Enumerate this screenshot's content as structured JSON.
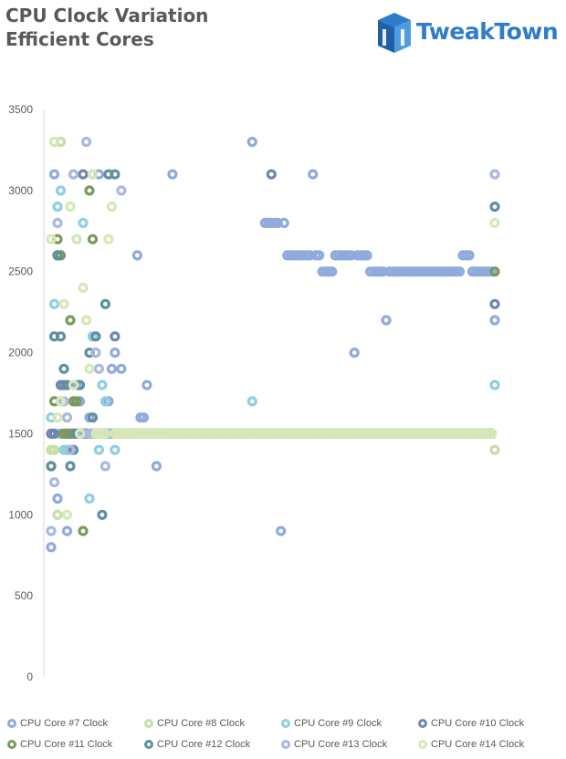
{
  "title_lines": [
    "CPU Clock Variation",
    "Efficient Cores"
  ],
  "logo": {
    "text": "TweakTown",
    "icon": "tweaktown-logo-icon",
    "color": "#2f7dc9"
  },
  "chart_data": {
    "type": "scatter",
    "title": "CPU Clock Variation Efficient Cores",
    "xlabel": "",
    "ylabel": "",
    "ylim": [
      0,
      3500
    ],
    "yticks": [
      0,
      500,
      1000,
      1500,
      2000,
      2500,
      3000,
      3500
    ],
    "grid": false,
    "legend_position": "bottom",
    "sample_count": 140,
    "series": [
      {
        "name": "CPU Core #7 Clock",
        "color": "#8faadc",
        "values": [
          800,
          3100,
          1100,
          1500,
          1500,
          900,
          1400,
          1500,
          1800,
          1700,
          1500,
          1500,
          1600,
          3100,
          1500,
          3100,
          1500,
          1500,
          1700,
          1900,
          2000,
          1500,
          1900,
          1500,
          1500,
          1500,
          1500,
          2600,
          1600,
          1600,
          1800,
          1500,
          1500,
          1300,
          1500,
          1500,
          1500,
          1500,
          3100,
          1500,
          1500,
          1500,
          1500,
          1500,
          1500,
          1500,
          1500,
          1500,
          1500,
          1500,
          1500,
          1500,
          1500,
          1500,
          1500,
          1500,
          1500,
          1500,
          1500,
          1500,
          1500,
          1500,
          1500,
          3300,
          1500,
          1500,
          1500,
          2800,
          2800,
          2800,
          2800,
          2800,
          900,
          2800,
          2600,
          2600,
          2600,
          2600,
          2600,
          2600,
          2600,
          2600,
          3100,
          2600,
          2600,
          2500,
          2500,
          2500,
          2500,
          2600,
          2600,
          2600,
          2600,
          2600,
          2600,
          2000,
          2600,
          2600,
          2600,
          2600,
          2500,
          2500,
          2500,
          2500,
          2500,
          2200,
          2500,
          2500,
          2500,
          2500,
          2500,
          2500,
          2500,
          2500,
          2500,
          2500,
          2500,
          2500,
          2500,
          2500,
          2500,
          2500,
          2500,
          2500,
          2500,
          2500,
          2500,
          2500,
          2500,
          2600,
          2600,
          2600,
          2500,
          2500,
          2500,
          2500,
          2500,
          2500,
          2500,
          2200
        ]
      },
      {
        "name": "CPU Core #8 Clock",
        "color": "#c5dfa5",
        "values": [
          1400,
          1400,
          1000,
          3300,
          1500,
          1500,
          1500,
          1500,
          1500,
          1500,
          1500,
          1500,
          1500,
          1500,
          1500,
          1500,
          1500,
          1500,
          1500,
          1500,
          1500,
          1500,
          1500,
          1500,
          1500,
          1500,
          1500,
          1500,
          1500,
          1500,
          1500,
          1500,
          1500,
          1500,
          1500,
          1500,
          1500,
          1500,
          1500,
          1500,
          1500,
          1500,
          1500,
          1500,
          1500,
          1500,
          1500,
          1500,
          1500,
          1500,
          1500,
          1500,
          1500,
          1500,
          1500,
          1500,
          1500,
          1500,
          1500,
          1500,
          1500,
          1500,
          1500,
          1500,
          1500,
          1500,
          1500,
          1500,
          1500,
          1500,
          1500,
          1500,
          1500,
          1500,
          1500,
          1500,
          1500,
          1500,
          1500,
          1500,
          1500,
          1500,
          1500,
          1500,
          1500,
          1500,
          1500,
          1500,
          1500,
          1500,
          1500,
          1500,
          1500,
          1500,
          1500,
          1500,
          1500,
          1500,
          1500,
          1500,
          1500,
          1500,
          1500,
          1500,
          1500,
          1500,
          1500,
          1500,
          1500,
          1500,
          1500,
          1500,
          1500,
          1500,
          1500,
          1500,
          1500,
          1500,
          1500,
          1500,
          1500,
          1500,
          1500,
          1500,
          1500,
          1500,
          1500,
          1500,
          1500,
          1500,
          1500,
          1500,
          1500,
          1500,
          1500,
          1500,
          1500,
          1500,
          1500,
          1400
        ]
      },
      {
        "name": "CPU Core #9 Clock",
        "color": "#8ecfe0",
        "values": [
          1600,
          2300,
          2900,
          3000,
          1400,
          1400,
          1500,
          1500,
          1500,
          1500,
          2800,
          1500,
          1100,
          2100,
          2000,
          1400,
          1800,
          1700,
          1500,
          1500,
          1400,
          1500,
          1500,
          1500,
          1500,
          1500,
          1500,
          1500,
          1500,
          1500,
          1500,
          1500,
          1500,
          1500,
          1500,
          1500,
          1500,
          1500,
          1500,
          1500,
          1500,
          1500,
          1500,
          1500,
          1500,
          1500,
          1500,
          1500,
          1500,
          1500,
          1500,
          1500,
          1500,
          1500,
          1500,
          1500,
          1500,
          1500,
          1500,
          1500,
          1500,
          1500,
          1500,
          1700,
          1500,
          1500,
          1500,
          1500,
          1500,
          1500,
          1500,
          1500,
          1500,
          1500,
          1500,
          1500,
          1500,
          1500,
          1500,
          1500,
          1500,
          1500,
          1500,
          1500,
          1500,
          1500,
          1500,
          1500,
          1500,
          1500,
          1500,
          1500,
          1500,
          1500,
          1500,
          1500,
          1500,
          1500,
          1500,
          1500,
          1500,
          1500,
          1500,
          1500,
          1500,
          1500,
          1500,
          1500,
          1500,
          1500,
          1500,
          1500,
          1500,
          1500,
          1500,
          1500,
          1500,
          1500,
          1500,
          1500,
          1500,
          1500,
          1500,
          1500,
          1500,
          1500,
          1500,
          1500,
          1500,
          1500,
          1500,
          1500,
          1500,
          1500,
          1500,
          1500,
          1500,
          1500,
          1500,
          1800
        ]
      },
      {
        "name": "CPU Core #10 Clock",
        "color": "#6f87b0",
        "values": [
          1500,
          1500,
          2600,
          1800,
          1800,
          1500,
          1500,
          1500,
          1500,
          1500,
          3100,
          1500,
          1500,
          1500,
          1500,
          1500,
          1500,
          1500,
          1500,
          1500,
          2100,
          1500,
          1500,
          1500,
          1500,
          1500,
          1500,
          1500,
          1500,
          1500,
          1500,
          1500,
          1500,
          1500,
          1500,
          1500,
          1500,
          1500,
          1500,
          1500,
          1500,
          1500,
          1500,
          1500,
          1500,
          1500,
          1500,
          1500,
          1500,
          1500,
          1500,
          1500,
          1500,
          1500,
          1500,
          1500,
          1500,
          1500,
          1500,
          1500,
          1500,
          1500,
          1500,
          1500,
          1500,
          1500,
          1500,
          1500,
          1500,
          3100,
          1500,
          1500,
          1500,
          1500,
          1500,
          1500,
          1500,
          1500,
          1500,
          1500,
          1500,
          1500,
          1500,
          1500,
          1500,
          1500,
          1500,
          1500,
          1500,
          1500,
          1500,
          1500,
          1500,
          1500,
          1500,
          1500,
          1500,
          1500,
          1500,
          1500,
          1500,
          1500,
          1500,
          1500,
          1500,
          1500,
          1500,
          1500,
          1500,
          1500,
          1500,
          1500,
          1500,
          1500,
          1500,
          1500,
          1500,
          1500,
          1500,
          1500,
          1500,
          1500,
          1500,
          1500,
          1500,
          1500,
          1500,
          1500,
          1500,
          1500,
          1500,
          1500,
          1500,
          1500,
          1500,
          1500,
          1500,
          1500,
          1500,
          2300
        ]
      },
      {
        "name": "CPU Core #11 Clock",
        "color": "#7a9a5c",
        "values": [
          1300,
          1700,
          2700,
          2600,
          1500,
          1500,
          2200,
          1700,
          1700,
          1500,
          900,
          1500,
          3000,
          2700,
          1500,
          1500,
          1500,
          1500,
          1500,
          1500,
          1500,
          1500,
          1500,
          1500,
          1500,
          1500,
          1500,
          1500,
          1500,
          1500,
          1500,
          1500,
          1500,
          1500,
          1500,
          1500,
          1500,
          1500,
          1500,
          1500,
          1500,
          1500,
          1500,
          1500,
          1500,
          1500,
          1500,
          1500,
          1500,
          1500,
          1500,
          1500,
          1500,
          1500,
          1500,
          1500,
          1500,
          1500,
          1500,
          1500,
          1500,
          1500,
          1500,
          1500,
          1500,
          1500,
          1500,
          1500,
          1500,
          1500,
          1500,
          1500,
          1500,
          1500,
          1500,
          1500,
          1500,
          1500,
          1500,
          1500,
          1500,
          1500,
          1500,
          1500,
          1500,
          1500,
          1500,
          1500,
          1500,
          1500,
          1500,
          1500,
          1500,
          1500,
          1500,
          1500,
          1500,
          1500,
          1500,
          1500,
          1500,
          1500,
          1500,
          1500,
          1500,
          1500,
          1500,
          1500,
          1500,
          1500,
          1500,
          1500,
          1500,
          1500,
          1500,
          1500,
          1500,
          1500,
          1500,
          1500,
          1500,
          1500,
          1500,
          1500,
          1500,
          1500,
          1500,
          1500,
          1500,
          1500,
          1500,
          1500,
          1500,
          1500,
          1500,
          1500,
          1500,
          1500,
          1500,
          2500
        ]
      },
      {
        "name": "CPU Core #12 Clock",
        "color": "#5f8fa0",
        "values": [
          1300,
          2100,
          2600,
          2100,
          1900,
          1800,
          1300,
          1400,
          1500,
          1800,
          1500,
          1500,
          2000,
          1600,
          2100,
          1500,
          1000,
          2300,
          3100,
          1500,
          3100,
          1500,
          1500,
          1500,
          1500,
          1500,
          1500,
          1500,
          1500,
          1500,
          1500,
          1500,
          1500,
          1500,
          1500,
          1500,
          1500,
          1500,
          1500,
          1500,
          1500,
          1500,
          1500,
          1500,
          1500,
          1500,
          1500,
          1500,
          1500,
          1500,
          1500,
          1500,
          1500,
          1500,
          1500,
          1500,
          1500,
          1500,
          1500,
          1500,
          1500,
          1500,
          1500,
          1500,
          1500,
          1500,
          1500,
          1500,
          1500,
          1500,
          1500,
          1500,
          1500,
          1500,
          1500,
          1500,
          1500,
          1500,
          1500,
          1500,
          1500,
          1500,
          1500,
          1500,
          1500,
          1500,
          1500,
          1500,
          1500,
          1500,
          1500,
          1500,
          1500,
          1500,
          1500,
          1500,
          1500,
          1500,
          1500,
          1500,
          1500,
          1500,
          1500,
          1500,
          1500,
          1500,
          1500,
          1500,
          1500,
          1500,
          1500,
          1500,
          1500,
          1500,
          1500,
          1500,
          1500,
          1500,
          1500,
          1500,
          1500,
          1500,
          1500,
          1500,
          1500,
          1500,
          1500,
          1500,
          1500,
          1500,
          1500,
          1500,
          1500,
          1500,
          1500,
          1500,
          1500,
          1500,
          1500,
          2900
        ]
      },
      {
        "name": "CPU Core #13 Clock",
        "color": "#a9b8e0",
        "values": [
          900,
          1200,
          2800,
          1700,
          1700,
          1600,
          1400,
          3100,
          2700,
          1500,
          1500,
          3300,
          1500,
          1500,
          2000,
          1900,
          1500,
          1300,
          1500,
          1500,
          1500,
          1500,
          3000,
          1500,
          1500,
          1500,
          1500,
          1500,
          1500,
          1500,
          1500,
          1500,
          1500,
          1500,
          1500,
          1500,
          1500,
          1500,
          1500,
          1500,
          1500,
          1500,
          1500,
          1500,
          1500,
          1500,
          1500,
          1500,
          1500,
          1500,
          1500,
          1500,
          1500,
          1500,
          1500,
          1500,
          1500,
          1500,
          1500,
          1500,
          1500,
          1500,
          1500,
          1500,
          1500,
          1500,
          1500,
          1500,
          1500,
          1500,
          1500,
          1500,
          1500,
          1500,
          1500,
          1500,
          1500,
          1500,
          1500,
          1500,
          1500,
          1500,
          1500,
          1500,
          1500,
          1500,
          1500,
          1500,
          1500,
          1500,
          1500,
          1500,
          1500,
          1500,
          1500,
          1500,
          1500,
          1500,
          1500,
          1500,
          1500,
          1500,
          1500,
          1500,
          1500,
          1500,
          1500,
          1500,
          1500,
          1500,
          1500,
          1500,
          1500,
          1500,
          1500,
          1500,
          1500,
          1500,
          1500,
          1500,
          1500,
          1500,
          1500,
          1500,
          1500,
          1500,
          1500,
          1500,
          1500,
          1500,
          1500,
          1500,
          1500,
          1500,
          1500,
          1500,
          1500,
          1500,
          1500,
          3100
        ]
      },
      {
        "name": "CPU Core #14 Clock",
        "color": "#d5e8b5",
        "values": [
          2700,
          3300,
          1600,
          1700,
          2300,
          1000,
          2900,
          1800,
          2700,
          1500,
          2400,
          2200,
          1900,
          3100,
          1500,
          1500,
          1500,
          1500,
          2700,
          2900,
          1500,
          1500,
          1500,
          1500,
          1500,
          1500,
          1500,
          1500,
          1500,
          1500,
          1500,
          1500,
          1500,
          1500,
          1500,
          1500,
          1500,
          1500,
          1500,
          1500,
          1500,
          1500,
          1500,
          1500,
          1500,
          1500,
          1500,
          1500,
          1500,
          1500,
          1500,
          1500,
          1500,
          1500,
          1500,
          1500,
          1500,
          1500,
          1500,
          1500,
          1500,
          1500,
          1500,
          1500,
          1500,
          1500,
          1500,
          1500,
          1500,
          1500,
          1500,
          1500,
          1500,
          1500,
          1500,
          1500,
          1500,
          1500,
          1500,
          1500,
          1500,
          1500,
          1500,
          1500,
          1500,
          1500,
          1500,
          1500,
          1500,
          1500,
          1500,
          1500,
          1500,
          1500,
          1500,
          1500,
          1500,
          1500,
          1500,
          1500,
          1500,
          1500,
          1500,
          1500,
          1500,
          1500,
          1500,
          1500,
          1500,
          1500,
          1500,
          1500,
          1500,
          1500,
          1500,
          1500,
          1500,
          1500,
          1500,
          1500,
          1500,
          1500,
          1500,
          1500,
          1500,
          1500,
          1500,
          1500,
          1500,
          1500,
          1500,
          1500,
          1500,
          1500,
          1500,
          1500,
          1500,
          1500,
          1500,
          2800
        ]
      }
    ]
  }
}
